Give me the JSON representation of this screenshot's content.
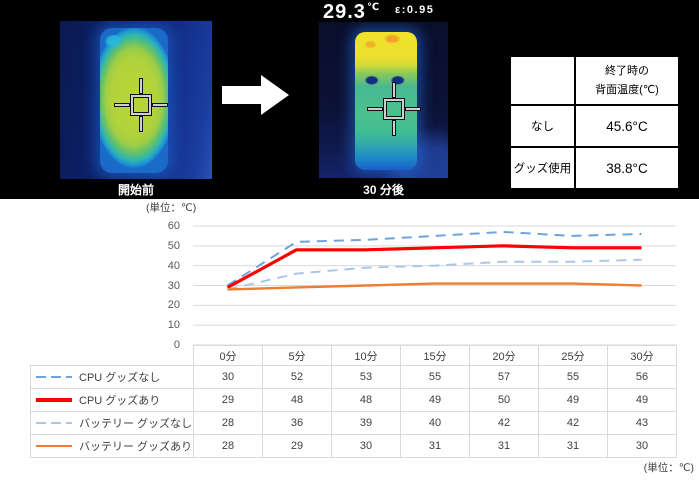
{
  "thermal": {
    "before_label": "開始前",
    "after_label": "30 分後",
    "reading_value": "29.3",
    "reading_unit": "℃",
    "emissivity": "ε:0.95"
  },
  "summary": {
    "header_line1": "終了時の",
    "header_line2": "背面温度(℃)",
    "rows": [
      {
        "label": "なし",
        "value": "45.6°C"
      },
      {
        "label": "グッズ使用",
        "value": "38.8°C"
      }
    ]
  },
  "chart_data": {
    "type": "line",
    "title": "",
    "unit_label": "(単位：℃)",
    "categories": [
      "0分",
      "5分",
      "10分",
      "15分",
      "20分",
      "25分",
      "30分"
    ],
    "series": [
      {
        "name": "CPU グッズなし",
        "style": "dashed",
        "color": "#6FA3DC",
        "width": 2,
        "values": [
          30,
          52,
          53,
          55,
          57,
          55,
          56
        ]
      },
      {
        "name": "CPU グッズあり",
        "style": "solid",
        "color": "#FF0000",
        "width": 3.2,
        "values": [
          29,
          48,
          48,
          49,
          50,
          49,
          49
        ]
      },
      {
        "name": "バッテリー グッズなし",
        "style": "dashed",
        "color": "#A9C7E9",
        "width": 2,
        "values": [
          28,
          36,
          39,
          40,
          42,
          42,
          43
        ]
      },
      {
        "name": "バッテリー グッズあり",
        "style": "solid",
        "color": "#ED7D31",
        "width": 2.4,
        "values": [
          28,
          29,
          30,
          31,
          31,
          31,
          30
        ]
      }
    ],
    "ylim": [
      0,
      60
    ],
    "yticks": [
      0,
      10,
      20,
      30,
      40,
      50,
      60
    ],
    "grid": true,
    "grid_color": "#D9D9D9",
    "legend_position": "table-left"
  }
}
